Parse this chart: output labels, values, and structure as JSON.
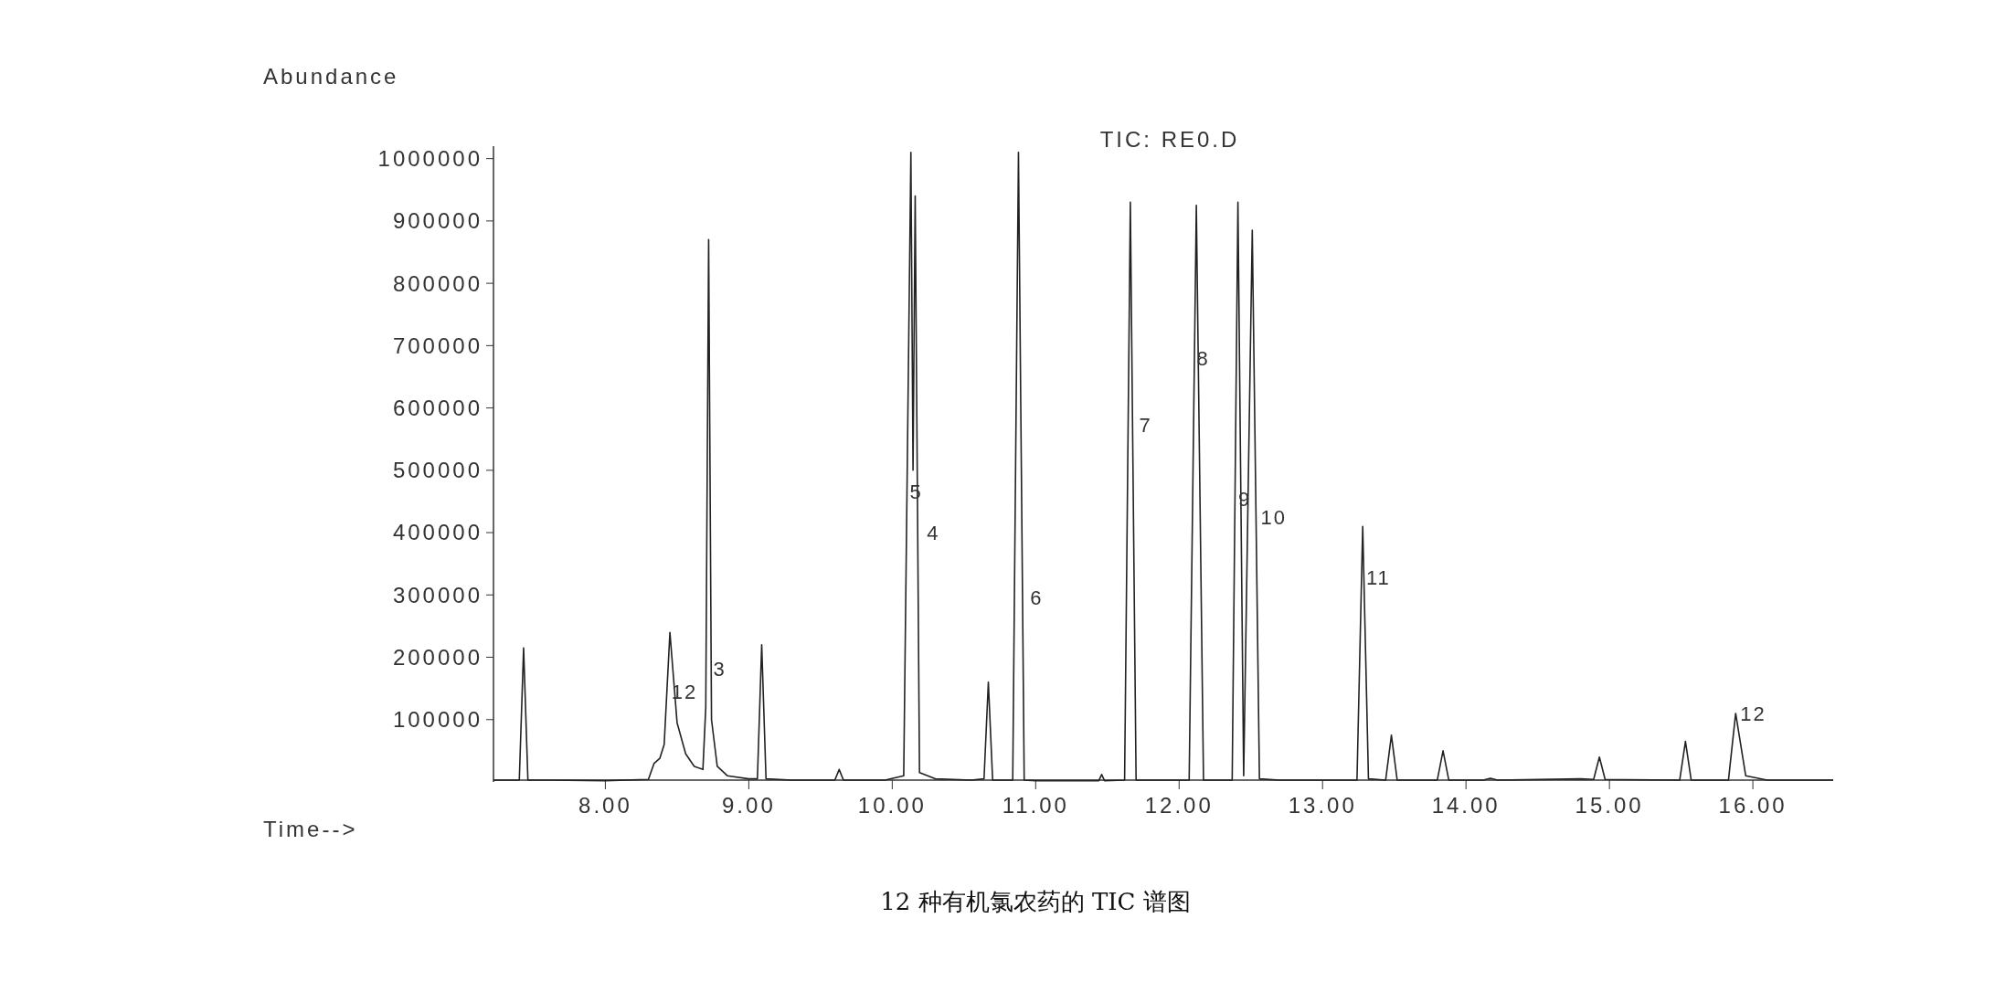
{
  "chart_data": {
    "type": "line",
    "title": "TIC: RE0.D",
    "xlabel": "Time-->",
    "ylabel": "Abundance",
    "x": [
      7.22,
      7.4,
      7.43,
      7.46,
      7.6,
      8.0,
      8.3,
      8.34,
      8.38,
      8.41,
      8.45,
      8.5,
      8.56,
      8.62,
      8.68,
      8.7,
      8.72,
      8.74,
      8.78,
      8.85,
      9.0,
      9.06,
      9.09,
      9.12,
      9.3,
      9.6,
      9.63,
      9.66,
      9.95,
      10.08,
      10.13,
      10.145,
      10.16,
      10.19,
      10.3,
      10.55,
      10.64,
      10.67,
      10.7,
      10.84,
      10.88,
      10.92,
      11.0,
      11.44,
      11.46,
      11.48,
      11.62,
      11.66,
      11.7,
      12.07,
      12.12,
      12.17,
      12.37,
      12.41,
      12.45,
      12.51,
      12.56,
      12.7,
      13.24,
      13.28,
      13.32,
      13.44,
      13.48,
      13.52,
      13.8,
      13.84,
      13.88,
      14.12,
      14.17,
      14.22,
      14.8,
      14.89,
      14.93,
      14.97,
      15.49,
      15.53,
      15.57,
      15.83,
      15.88,
      15.95,
      16.1,
      16.56
    ],
    "series": [
      {
        "color": "#222222",
        "values": [
          3000,
          3000,
          215000,
          3000,
          3000,
          2000,
          4000,
          30000,
          38000,
          60000,
          240000,
          95000,
          45000,
          25000,
          20000,
          120000,
          870000,
          100000,
          25000,
          10000,
          5000,
          5000,
          220000,
          5000,
          3000,
          3000,
          20000,
          3000,
          3000,
          10000,
          1010000,
          500000,
          940000,
          15000,
          5000,
          3000,
          5000,
          160000,
          3000,
          3000,
          1010000,
          3000,
          2000,
          2000,
          12000,
          2000,
          3000,
          930000,
          3000,
          3000,
          925000,
          3000,
          3000,
          930000,
          10000,
          885000,
          5000,
          3000,
          3000,
          410000,
          5000,
          3000,
          75000,
          3000,
          3000,
          50000,
          3000,
          3000,
          6000,
          3000,
          5000,
          4000,
          40000,
          4000,
          3000,
          65000,
          3000,
          3000,
          110000,
          10000,
          3000,
          3000
        ]
      }
    ],
    "xlim": [
      7.22,
      16.56
    ],
    "ylim": [
      0,
      1020000
    ],
    "xticks": [
      {
        "value": 8,
        "label": "8.00"
      },
      {
        "value": 9,
        "label": "9.00"
      },
      {
        "value": 10,
        "label": "10.00"
      },
      {
        "value": 11,
        "label": "11.00"
      },
      {
        "value": 12,
        "label": "12.00"
      },
      {
        "value": 13,
        "label": "13.00"
      },
      {
        "value": 14,
        "label": "14.00"
      },
      {
        "value": 15,
        "label": "15.00"
      },
      {
        "value": 16,
        "label": "16.00"
      }
    ],
    "yticks": [
      100000,
      200000,
      300000,
      400000,
      500000,
      600000,
      700000,
      800000,
      900000,
      1000000
    ],
    "annotations": [
      {
        "text": "12",
        "x": 8.429,
        "y": 145000
      },
      {
        "text": "3",
        "x": 8.72,
        "y": 181000
      },
      {
        "text": "5",
        "x": 10.09,
        "y": 466000
      },
      {
        "text": "4",
        "x": 10.21,
        "y": 399000
      },
      {
        "text": "6",
        "x": 10.93,
        "y": 295000
      },
      {
        "text": "7",
        "x": 11.69,
        "y": 572000
      },
      {
        "text": "8",
        "x": 12.09,
        "y": 680000
      },
      {
        "text": "9",
        "x": 12.38,
        "y": 454000
      },
      {
        "text": "10",
        "x": 12.536,
        "y": 425000
      },
      {
        "text": "11",
        "x": 13.272,
        "y": 328000
      },
      {
        "text": "12",
        "x": 15.88,
        "y": 110000
      },
      "12 种有机氯农药的 TIC 谱图"
    ]
  }
}
